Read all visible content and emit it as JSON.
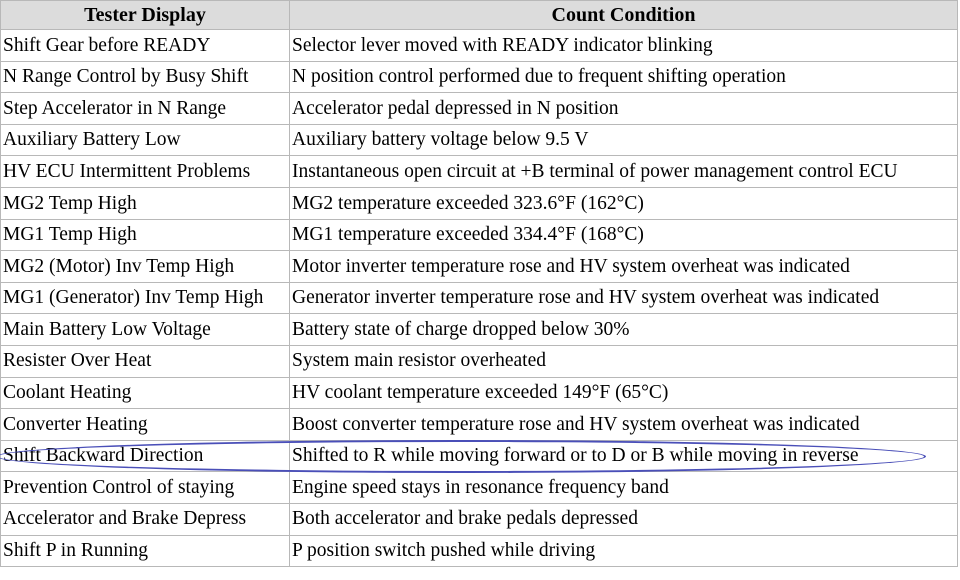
{
  "table": {
    "headers": [
      "Tester Display",
      "Count Condition"
    ],
    "rows": [
      [
        "Shift Gear before READY",
        "Selector lever moved with READY indicator blinking"
      ],
      [
        "N Range Control by Busy Shift",
        "N position control performed due to frequent shifting operation"
      ],
      [
        "Step Accelerator in N Range",
        "Accelerator pedal depressed in N position"
      ],
      [
        "Auxiliary Battery Low",
        "Auxiliary battery voltage below 9.5 V"
      ],
      [
        "HV ECU Intermittent Problems",
        "Instantaneous open circuit at +B terminal of power management control ECU"
      ],
      [
        "MG2 Temp High",
        "MG2 temperature exceeded 323.6°F (162°C)"
      ],
      [
        "MG1 Temp High",
        "MG1 temperature exceeded 334.4°F (168°C)"
      ],
      [
        "MG2 (Motor) Inv Temp High",
        "Motor inverter temperature rose and HV system overheat was indicated"
      ],
      [
        "MG1 (Generator) Inv Temp High",
        "Generator inverter temperature rose and HV system overheat was indicated"
      ],
      [
        "Main Battery Low Voltage",
        "Battery state of charge dropped below 30%"
      ],
      [
        "Resister Over Heat",
        "System main resistor overheated"
      ],
      [
        "Coolant Heating",
        "HV coolant temperature exceeded 149°F (65°C)"
      ],
      [
        "Converter Heating",
        "Boost converter temperature rose and HV system overheat was indicated"
      ],
      [
        "Shift Backward Direction",
        "Shifted to R while moving forward or to D or B while moving in reverse"
      ],
      [
        "Prevention Control of staying",
        "Engine speed stays in resonance frequency band"
      ],
      [
        "Accelerator and Brake Depress",
        "Both accelerator and brake pedals depressed"
      ],
      [
        "Shift P in Running",
        "P position switch pushed while driving"
      ]
    ],
    "highlighted_row": 13
  },
  "colors": {
    "border": "#b8b8b8",
    "header_background": "#dcdcdc",
    "highlight_ellipse": "#4a4fb8"
  }
}
